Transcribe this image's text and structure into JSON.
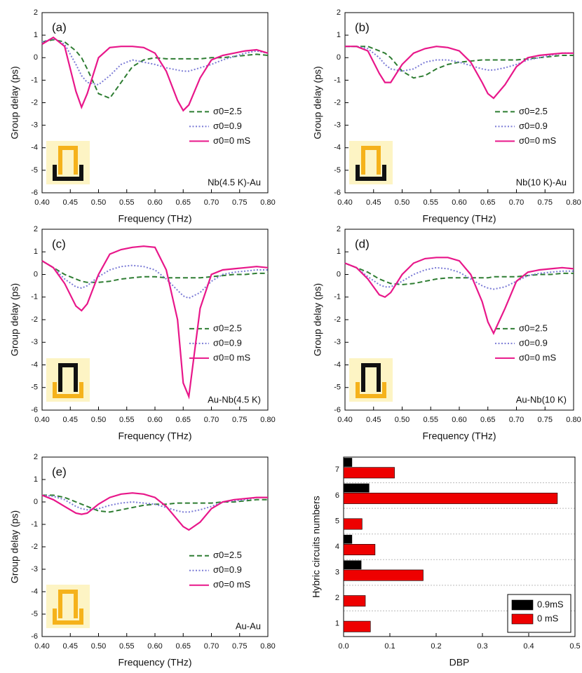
{
  "chart_data": [
    {
      "type": "line",
      "panel_label": "(a)",
      "annotation": "Nb(4.5 K)-Au",
      "x_label": "Frequency (THz)",
      "y_label": "Group delay (ps)",
      "x": [
        0.4,
        0.42,
        0.44,
        0.46,
        0.47,
        0.48,
        0.5,
        0.52,
        0.54,
        0.56,
        0.58,
        0.6,
        0.62,
        0.64,
        0.65,
        0.66,
        0.68,
        0.7,
        0.72,
        0.74,
        0.76,
        0.78,
        0.8
      ],
      "series": [
        {
          "name": "σ0=2.5",
          "color": "#2e7d32",
          "linestyle": "dashed",
          "values": [
            0.7,
            0.8,
            0.7,
            0.3,
            0,
            -0.5,
            -1.6,
            -1.8,
            -1.1,
            -0.4,
            -0.1,
            0,
            -0.05,
            -0.05,
            -0.05,
            -0.05,
            -0.05,
            0,
            0,
            0.05,
            0.1,
            0.15,
            0.1
          ]
        },
        {
          "name": "σ0=0.9",
          "color": "#7b7bd6",
          "linestyle": "dotted",
          "values": [
            0.7,
            0.85,
            0.6,
            -0.3,
            -0.8,
            -1.1,
            -1.2,
            -0.8,
            -0.3,
            -0.1,
            -0.2,
            -0.3,
            -0.45,
            -0.55,
            -0.6,
            -0.6,
            -0.45,
            -0.3,
            -0.1,
            0.05,
            0.2,
            0.3,
            0.2
          ]
        },
        {
          "name": "σ0=0 mS",
          "color": "#e8178a",
          "linestyle": "solid",
          "values": [
            0.6,
            0.9,
            0.5,
            -1.5,
            -2.2,
            -1.6,
            0,
            0.45,
            0.5,
            0.5,
            0.45,
            0.2,
            -0.6,
            -1.9,
            -2.35,
            -2.1,
            -0.9,
            -0.1,
            0.1,
            0.2,
            0.3,
            0.35,
            0.2
          ]
        }
      ],
      "xlim": [
        0.4,
        0.8
      ],
      "ylim": [
        -6,
        2
      ],
      "xticks": [
        {
          "value": 0.4,
          "label": "0.40"
        },
        0.45,
        {
          "value": 0.5,
          "label": "0.50"
        },
        0.55,
        {
          "value": 0.6,
          "label": "0.60"
        },
        0.65,
        {
          "value": 0.7,
          "label": "0.70"
        },
        0.75,
        {
          "value": 0.8,
          "label": "0.80"
        }
      ],
      "yticks": [
        -6,
        -5,
        -4,
        -3,
        -2,
        -1,
        0,
        1,
        2
      ]
    },
    {
      "type": "line",
      "panel_label": "(b)",
      "annotation": "Nb(10 K)-Au",
      "x_label": "Frequency (THz)",
      "y_label": "Group delay (ps)",
      "x": [
        0.4,
        0.42,
        0.44,
        0.46,
        0.47,
        0.48,
        0.5,
        0.52,
        0.54,
        0.56,
        0.58,
        0.6,
        0.62,
        0.64,
        0.65,
        0.66,
        0.68,
        0.7,
        0.72,
        0.74,
        0.76,
        0.78,
        0.8
      ],
      "series": [
        {
          "name": "σ0=2.5",
          "color": "#2e7d32",
          "linestyle": "dashed",
          "values": [
            0.5,
            0.5,
            0.5,
            0.3,
            0.2,
            0,
            -0.6,
            -0.9,
            -0.8,
            -0.5,
            -0.3,
            -0.2,
            -0.15,
            -0.1,
            -0.1,
            -0.1,
            -0.1,
            -0.1,
            -0.05,
            0,
            0.05,
            0.1,
            0.1
          ]
        },
        {
          "name": "σ0=0.9",
          "color": "#7b7bd6",
          "linestyle": "dotted",
          "values": [
            0.5,
            0.5,
            0.4,
            0,
            -0.3,
            -0.5,
            -0.6,
            -0.5,
            -0.2,
            -0.1,
            -0.1,
            -0.2,
            -0.35,
            -0.5,
            -0.55,
            -0.55,
            -0.45,
            -0.3,
            -0.1,
            0,
            0.1,
            0.2,
            0.2
          ]
        },
        {
          "name": "σ0=0 mS",
          "color": "#e8178a",
          "linestyle": "solid",
          "values": [
            0.5,
            0.5,
            0.3,
            -0.7,
            -1.1,
            -1.1,
            -0.3,
            0.2,
            0.4,
            0.5,
            0.45,
            0.3,
            -0.2,
            -1.1,
            -1.6,
            -1.8,
            -1.2,
            -0.4,
            0,
            0.1,
            0.15,
            0.2,
            0.2
          ]
        }
      ],
      "xlim": [
        0.4,
        0.8
      ],
      "ylim": [
        -6,
        2
      ],
      "xticks": [
        {
          "value": 0.4,
          "label": "0.40"
        },
        0.45,
        {
          "value": 0.5,
          "label": "0.50"
        },
        0.55,
        {
          "value": 0.6,
          "label": "0.60"
        },
        0.65,
        {
          "value": 0.7,
          "label": "0.70"
        },
        0.75,
        {
          "value": 0.8,
          "label": "0.80"
        }
      ],
      "yticks": [
        -6,
        -5,
        -4,
        -3,
        -2,
        -1,
        0,
        1,
        2
      ]
    },
    {
      "type": "line",
      "panel_label": "(c)",
      "annotation": "Au-Nb(4.5 K)",
      "x_label": "Frequency (THz)",
      "y_label": "Group delay (ps)",
      "x": [
        0.4,
        0.42,
        0.44,
        0.46,
        0.47,
        0.48,
        0.5,
        0.52,
        0.54,
        0.56,
        0.58,
        0.6,
        0.62,
        0.64,
        0.65,
        0.66,
        0.68,
        0.7,
        0.72,
        0.74,
        0.76,
        0.78,
        0.8
      ],
      "series": [
        {
          "name": "σ0=2.5",
          "color": "#2e7d32",
          "linestyle": "dashed",
          "values": [
            0.6,
            0.3,
            0,
            -0.2,
            -0.3,
            -0.35,
            -0.35,
            -0.3,
            -0.2,
            -0.15,
            -0.1,
            -0.1,
            -0.15,
            -0.15,
            -0.15,
            -0.15,
            -0.15,
            -0.1,
            -0.05,
            0,
            0,
            0.05,
            0.05
          ]
        },
        {
          "name": "σ0=0.9",
          "color": "#7b7bd6",
          "linestyle": "dotted",
          "values": [
            0.6,
            0.3,
            -0.2,
            -0.55,
            -0.6,
            -0.5,
            -0.1,
            0.2,
            0.35,
            0.4,
            0.35,
            0.2,
            -0.2,
            -0.7,
            -0.95,
            -1.05,
            -0.8,
            -0.3,
            0,
            0.1,
            0.15,
            0.2,
            0.2
          ]
        },
        {
          "name": "σ0=0 mS",
          "color": "#e8178a",
          "linestyle": "solid",
          "values": [
            0.6,
            0.3,
            -0.4,
            -1.4,
            -1.6,
            -1.3,
            0,
            0.9,
            1.1,
            1.2,
            1.25,
            1.2,
            0.2,
            -2,
            -4.8,
            -5.4,
            -1.5,
            0,
            0.2,
            0.25,
            0.3,
            0.35,
            0.3
          ]
        }
      ],
      "xlim": [
        0.4,
        0.8
      ],
      "ylim": [
        -6,
        2
      ],
      "xticks": [
        {
          "value": 0.4,
          "label": "0.40"
        },
        0.45,
        {
          "value": 0.5,
          "label": "0.50"
        },
        0.55,
        {
          "value": 0.6,
          "label": "0.60"
        },
        0.65,
        {
          "value": 0.7,
          "label": "0.70"
        },
        0.75,
        {
          "value": 0.8,
          "label": "0.80"
        }
      ],
      "yticks": [
        -6,
        -5,
        -4,
        -3,
        -2,
        -1,
        0,
        1,
        2
      ]
    },
    {
      "type": "line",
      "panel_label": "(d)",
      "annotation": "Au-Nb(10 K)",
      "x_label": "Frequency (THz)",
      "y_label": "Group delay (ps)",
      "x": [
        0.4,
        0.42,
        0.44,
        0.46,
        0.47,
        0.48,
        0.5,
        0.52,
        0.54,
        0.56,
        0.58,
        0.6,
        0.62,
        0.64,
        0.65,
        0.66,
        0.68,
        0.7,
        0.72,
        0.74,
        0.76,
        0.78,
        0.8
      ],
      "series": [
        {
          "name": "σ0=2.5",
          "color": "#2e7d32",
          "linestyle": "dashed",
          "values": [
            0.5,
            0.3,
            0.1,
            -0.2,
            -0.3,
            -0.4,
            -0.45,
            -0.4,
            -0.3,
            -0.2,
            -0.15,
            -0.15,
            -0.15,
            -0.15,
            -0.15,
            -0.1,
            -0.1,
            -0.1,
            -0.05,
            0,
            0,
            0.05,
            0.05
          ]
        },
        {
          "name": "σ0=0.9",
          "color": "#7b7bd6",
          "linestyle": "dotted",
          "values": [
            0.5,
            0.3,
            -0.1,
            -0.45,
            -0.55,
            -0.55,
            -0.3,
            0,
            0.2,
            0.3,
            0.25,
            0.1,
            -0.2,
            -0.5,
            -0.6,
            -0.65,
            -0.55,
            -0.3,
            -0.05,
            0.05,
            0.1,
            0.15,
            0.15
          ]
        },
        {
          "name": "σ0=0 mS",
          "color": "#e8178a",
          "linestyle": "solid",
          "values": [
            0.5,
            0.3,
            -0.2,
            -0.9,
            -1.0,
            -0.8,
            0,
            0.5,
            0.7,
            0.75,
            0.75,
            0.6,
            0,
            -1.2,
            -2.1,
            -2.6,
            -1.5,
            -0.3,
            0.1,
            0.2,
            0.25,
            0.3,
            0.25
          ]
        }
      ],
      "xlim": [
        0.4,
        0.8
      ],
      "ylim": [
        -6,
        2
      ],
      "xticks": [
        {
          "value": 0.4,
          "label": "0.40"
        },
        0.45,
        {
          "value": 0.5,
          "label": "0.50"
        },
        0.55,
        {
          "value": 0.6,
          "label": "0.60"
        },
        0.65,
        {
          "value": 0.7,
          "label": "0.70"
        },
        0.75,
        {
          "value": 0.8,
          "label": "0.80"
        }
      ],
      "yticks": [
        -6,
        -5,
        -4,
        -3,
        -2,
        -1,
        0,
        1,
        2
      ]
    },
    {
      "type": "line",
      "panel_label": "(e)",
      "annotation": "Au-Au",
      "x_label": "Frequency (THz)",
      "y_label": "Group delay (ps)",
      "x": [
        0.4,
        0.42,
        0.44,
        0.46,
        0.47,
        0.48,
        0.5,
        0.52,
        0.54,
        0.56,
        0.58,
        0.6,
        0.62,
        0.64,
        0.65,
        0.66,
        0.68,
        0.7,
        0.72,
        0.74,
        0.76,
        0.78,
        0.8
      ],
      "series": [
        {
          "name": "σ0=2.5",
          "color": "#2e7d32",
          "linestyle": "dashed",
          "values": [
            0.3,
            0.3,
            0.2,
            0,
            -0.1,
            -0.2,
            -0.4,
            -0.45,
            -0.35,
            -0.25,
            -0.15,
            -0.1,
            -0.1,
            -0.05,
            -0.05,
            -0.05,
            -0.05,
            -0.05,
            0,
            0,
            0.05,
            0.1,
            0.1
          ]
        },
        {
          "name": "σ0=0.9",
          "color": "#7b7bd6",
          "linestyle": "dotted",
          "values": [
            0.3,
            0.25,
            0.1,
            -0.2,
            -0.3,
            -0.35,
            -0.3,
            -0.15,
            -0.05,
            0,
            -0.05,
            -0.1,
            -0.25,
            -0.4,
            -0.45,
            -0.45,
            -0.35,
            -0.2,
            0,
            0.05,
            0.1,
            0.2,
            0.2
          ]
        },
        {
          "name": "σ0=0 mS",
          "color": "#e8178a",
          "linestyle": "solid",
          "values": [
            0.3,
            0.1,
            -0.2,
            -0.5,
            -0.55,
            -0.5,
            -0.1,
            0.2,
            0.35,
            0.4,
            0.35,
            0.2,
            -0.2,
            -0.8,
            -1.1,
            -1.25,
            -0.9,
            -0.3,
            0,
            0.1,
            0.15,
            0.2,
            0.2
          ]
        }
      ],
      "xlim": [
        0.4,
        0.8
      ],
      "ylim": [
        -6,
        2
      ],
      "xticks": [
        {
          "value": 0.4,
          "label": "0.40"
        },
        0.45,
        {
          "value": 0.5,
          "label": "0.50"
        },
        0.55,
        {
          "value": 0.6,
          "label": "0.60"
        },
        0.65,
        {
          "value": 0.7,
          "label": "0.70"
        },
        0.75,
        {
          "value": 0.8,
          "label": "0.80"
        }
      ],
      "yticks": [
        -6,
        -5,
        -4,
        -3,
        -2,
        -1,
        0,
        1,
        2
      ]
    },
    {
      "type": "barh",
      "panel_label": "(f)",
      "x_label": "DBP",
      "y_label": "Hybric circuits numbers",
      "categories": [
        "1",
        "2",
        "3",
        "4",
        "5",
        "6",
        "7"
      ],
      "series": [
        {
          "name": "0.9mS",
          "color": "#000000",
          "values": [
            0,
            0,
            0.038,
            0.018,
            0,
            0.055,
            0.018
          ]
        },
        {
          "name": "0 mS",
          "color": "#ee0000",
          "values": [
            0.058,
            0.047,
            0.172,
            0.068,
            0.04,
            0.462,
            0.11
          ]
        }
      ],
      "xlim": [
        0,
        0.5
      ],
      "xticks": [
        {
          "value": 0,
          "label": "0.0"
        },
        0.1,
        0.2,
        0.3,
        0.4,
        0.5
      ],
      "legend": "lower right"
    }
  ]
}
